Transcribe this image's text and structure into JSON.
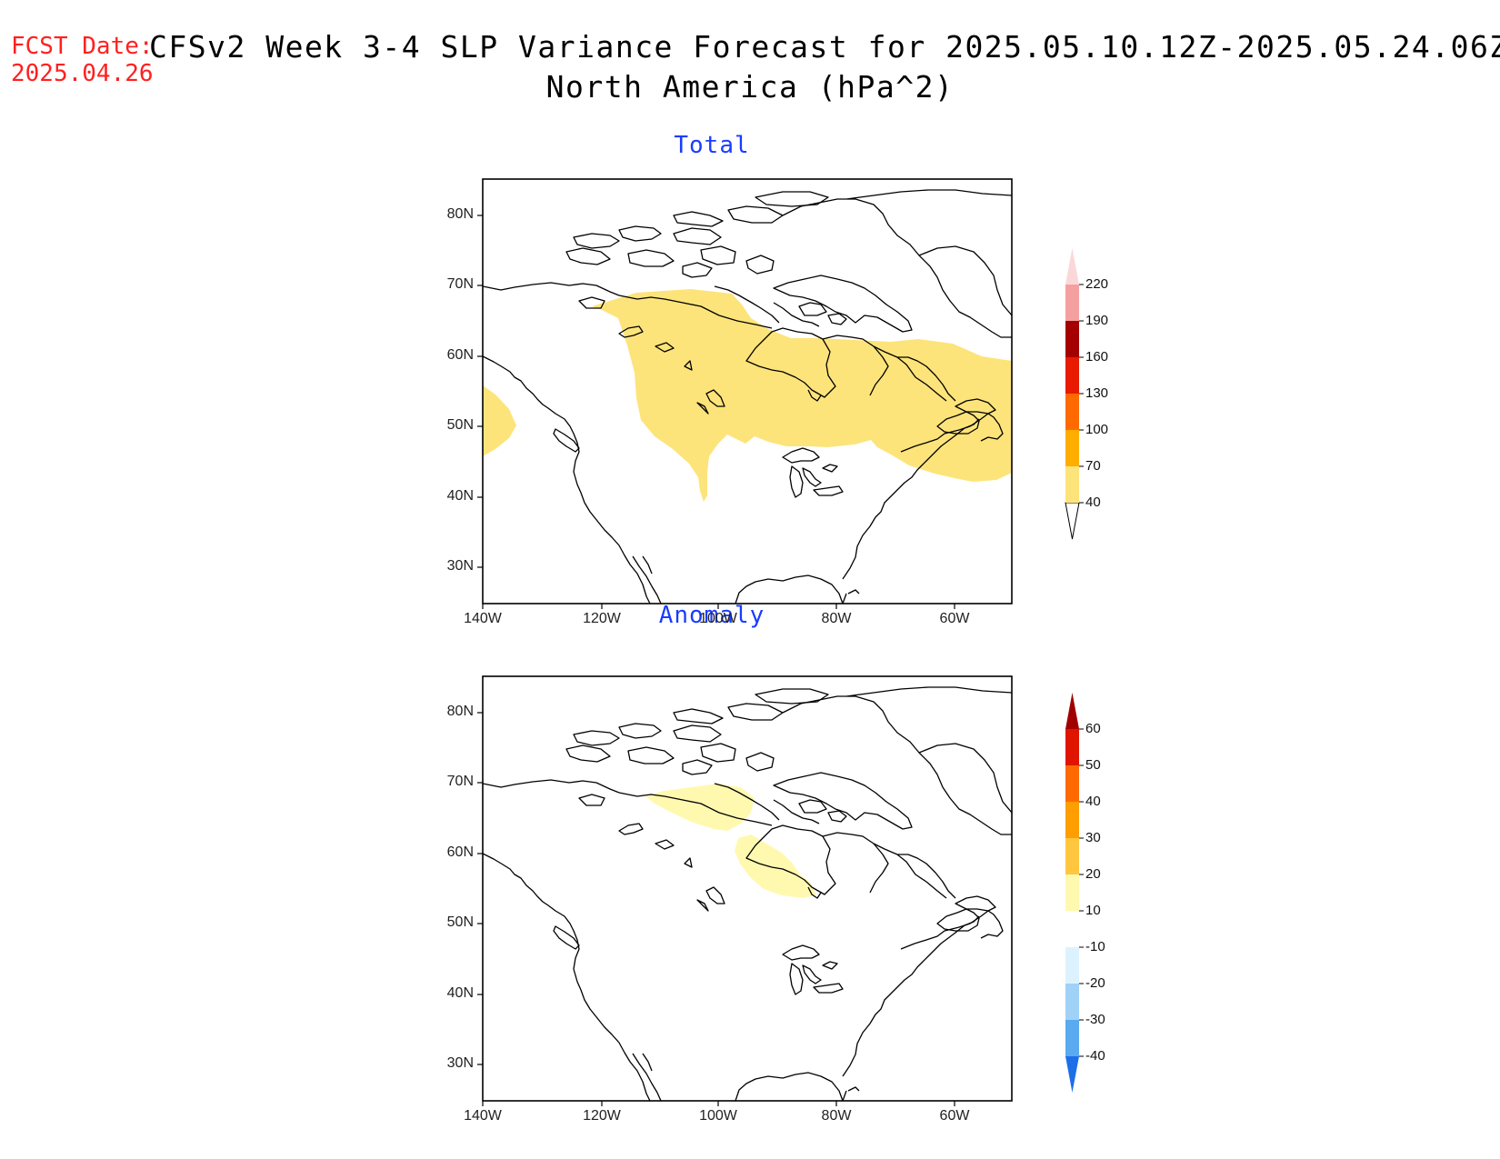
{
  "header": {
    "fcst_label": "FCST Date:",
    "fcst_date": "2025.04.26",
    "title_line1": "CFSv2 Week 3-4 SLP Variance Forecast for 2025.05.10.12Z-2025.05.24.06Z",
    "title_line2": "North America (hPa^2)"
  },
  "axes": {
    "lat_labels": [
      "80N",
      "70N",
      "60N",
      "50N",
      "40N",
      "30N"
    ],
    "lat_values": [
      80,
      70,
      60,
      50,
      40,
      30
    ],
    "lon_labels": [
      "140W",
      "120W",
      "100W",
      "80W",
      "60W"
    ],
    "lon_values": [
      -140,
      -120,
      -100,
      -80,
      -60
    ],
    "lat_range": [
      25,
      85
    ],
    "lon_range": [
      -140,
      -50
    ]
  },
  "panels": [
    {
      "title": "Total",
      "colorbar": {
        "levels": [
          "40",
          "70",
          "100",
          "130",
          "160",
          "190",
          "220"
        ],
        "colors": [
          "#fde47a",
          "#ffae00",
          "#ff6a00",
          "#e81a00",
          "#a50000",
          "#f4a0a0",
          "#fbd8d8"
        ],
        "shaded_regions": [
          {
            "range": "40-70",
            "color": "#fde47a",
            "area": "Canada from Yukon/Mackenzie east across Hudson Bay to Labrador and the Maritimes, south into northern Great Plains"
          },
          {
            "range": "40-70",
            "color": "#fde47a",
            "area": "Gulf of Alaska offshore around 50N"
          }
        ]
      }
    },
    {
      "title": "Anomaly",
      "colorbar": {
        "levels": [
          "-40",
          "-30",
          "-20",
          "-10",
          "10",
          "20",
          "30",
          "40",
          "50",
          "60"
        ],
        "colors": [
          "#1e6ee8",
          "#5aaaf0",
          "#a0d2f8",
          "#dcf3ff",
          "#ffffff",
          "#fff9b0",
          "#ffc640",
          "#ff9e00",
          "#ff6a00",
          "#e01500",
          "#a00000"
        ],
        "shaded_regions": [
          {
            "range": "10-20",
            "color": "#fff9b0",
            "area": "Arctic coast near Amundsen Gulf around 68N"
          },
          {
            "range": "10-20",
            "color": "#fff9b0",
            "area": "West of Hudson Bay around 58N"
          }
        ]
      }
    }
  ]
}
